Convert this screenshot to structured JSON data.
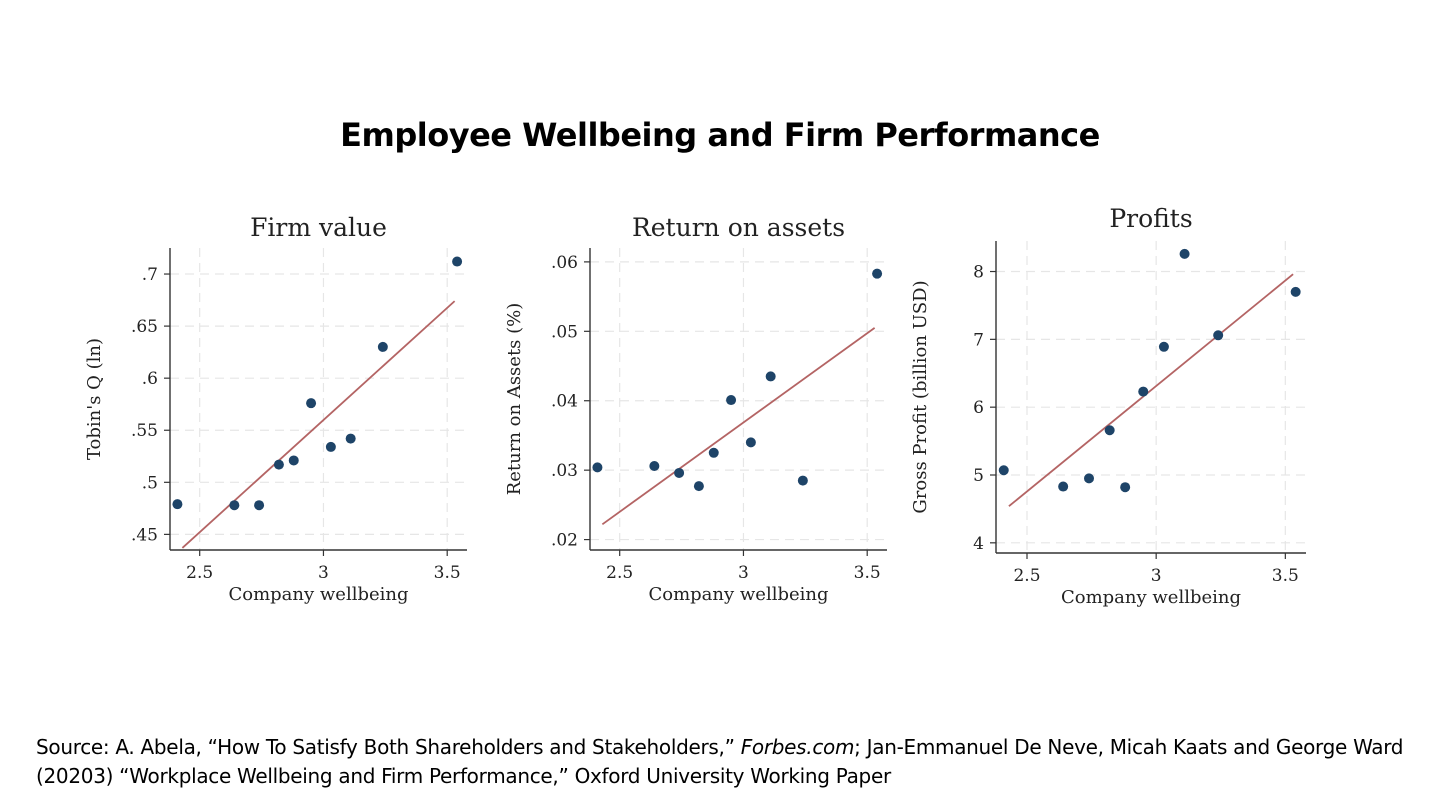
{
  "slide": {
    "title": "Employee Wellbeing and Firm Performance"
  },
  "source": {
    "prefix": "Source:  A. Abela, “How To Satisfy Both Shareholders and Stakeholders,” ",
    "italic": "Forbes.com",
    "suffix": "; Jan-Emmanuel De Neve, Micah Kaats and George Ward (20203) “Workplace Wellbeing and Firm Performance,” Oxford University Working Paper"
  },
  "colors": {
    "point": "#1e4468",
    "fit_line": "#b46464"
  },
  "chart_data": [
    {
      "type": "scatter",
      "title": "Firm value",
      "xlabel": "Company wellbeing",
      "ylabel": "Tobin's Q (ln)",
      "xlim": [
        2.38,
        3.58
      ],
      "ylim": [
        0.435,
        0.725
      ],
      "xticks": [
        2.5,
        3,
        3.5
      ],
      "xtick_labels": [
        "2.5",
        "3",
        "3.5"
      ],
      "yticks": [
        0.45,
        0.5,
        0.55,
        0.6,
        0.65,
        0.7
      ],
      "ytick_labels": [
        ".45",
        ".5",
        ".55",
        ".6",
        ".65",
        ".7"
      ],
      "x": [
        2.41,
        2.64,
        2.74,
        2.82,
        2.88,
        2.95,
        3.03,
        3.11,
        3.24,
        3.54
      ],
      "y": [
        0.479,
        0.478,
        0.478,
        0.517,
        0.521,
        0.576,
        0.534,
        0.542,
        0.63,
        0.712
      ],
      "fit": {
        "x": [
          2.43,
          3.53
        ],
        "y": [
          0.437,
          0.674
        ]
      }
    },
    {
      "type": "scatter",
      "title": "Return on assets",
      "xlabel": "Company wellbeing",
      "ylabel": "Return on Assets (%)",
      "xlim": [
        2.38,
        3.58
      ],
      "ylim": [
        0.0185,
        0.062
      ],
      "xticks": [
        2.5,
        3,
        3.5
      ],
      "xtick_labels": [
        "2.5",
        "3",
        "3.5"
      ],
      "yticks": [
        0.02,
        0.03,
        0.04,
        0.05,
        0.06
      ],
      "ytick_labels": [
        ".02",
        ".03",
        ".04",
        ".05",
        ".06"
      ],
      "x": [
        2.41,
        2.64,
        2.74,
        2.82,
        2.88,
        2.95,
        3.03,
        3.11,
        3.24,
        3.54
      ],
      "y": [
        0.0304,
        0.0306,
        0.0296,
        0.0277,
        0.0325,
        0.0401,
        0.034,
        0.0435,
        0.0285,
        0.0583
      ],
      "fit": {
        "x": [
          2.43,
          3.53
        ],
        "y": [
          0.0222,
          0.0505
        ]
      }
    },
    {
      "type": "scatter",
      "title": "Profits",
      "xlabel": "Company wellbeing",
      "ylabel": "Gross Profit (billion USD)",
      "xlim": [
        2.38,
        3.58
      ],
      "ylim": [
        3.85,
        8.45
      ],
      "xticks": [
        2.5,
        3,
        3.5
      ],
      "xtick_labels": [
        "2.5",
        "3",
        "3.5"
      ],
      "yticks": [
        4,
        5,
        6,
        7,
        8
      ],
      "ytick_labels": [
        "4",
        "5",
        "6",
        "7",
        "8"
      ],
      "x": [
        2.41,
        2.64,
        2.74,
        2.82,
        2.88,
        2.95,
        3.03,
        3.11,
        3.24,
        3.54
      ],
      "y": [
        5.07,
        4.83,
        4.95,
        5.66,
        4.82,
        6.23,
        6.89,
        8.26,
        7.06,
        7.7
      ],
      "fit": {
        "x": [
          2.43,
          3.53
        ],
        "y": [
          4.54,
          7.96
        ]
      }
    }
  ]
}
